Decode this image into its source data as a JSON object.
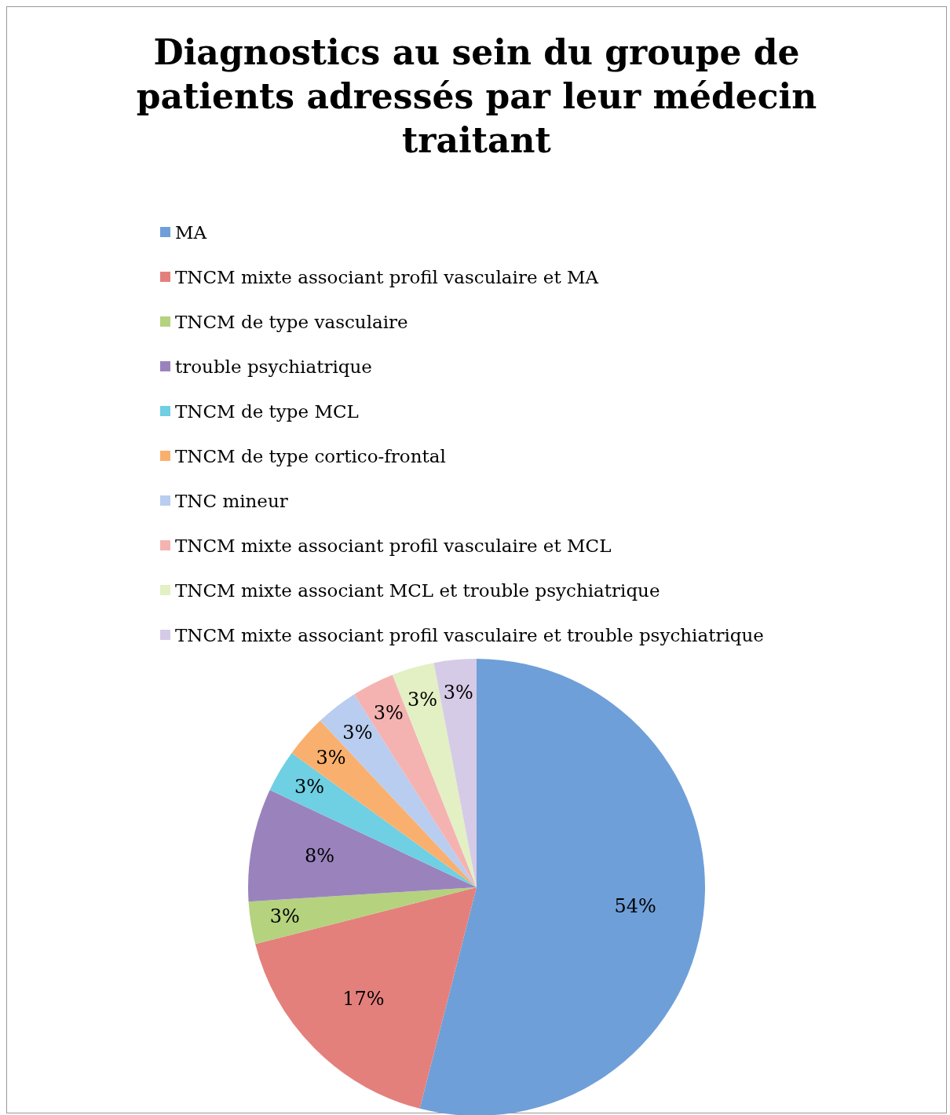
{
  "chart_data": {
    "type": "pie",
    "title": "Diagnostics au sein du groupe de patients adressés par leur médecin traitant",
    "categories": [
      "MA",
      "TNCM mixte associant profil vasculaire et MA",
      "TNCM de type vasculaire",
      "trouble psychiatrique",
      "TNCM de type MCL",
      "TNCM de type cortico-frontal",
      "TNC mineur",
      "TNCM mixte associant profil vasculaire et MCL",
      "TNCM mixte associant MCL et trouble psychiatrique",
      "TNCM mixte associant profil vasculaire et trouble psychiatrique"
    ],
    "values": [
      54,
      17,
      3,
      8,
      3,
      3,
      3,
      3,
      3,
      3
    ],
    "colors": [
      "#6f9fd8",
      "#e4807c",
      "#b5d27e",
      "#9a83bd",
      "#6fcfe3",
      "#f9b06e",
      "#b8cdf0",
      "#f4b3b1",
      "#e2f0c4",
      "#d6cbe6"
    ],
    "value_labels": [
      "54%",
      "17%",
      "3%",
      "8%",
      "3%",
      "3%",
      "3%",
      "3%",
      "3%",
      "3%"
    ],
    "legend": "top"
  }
}
